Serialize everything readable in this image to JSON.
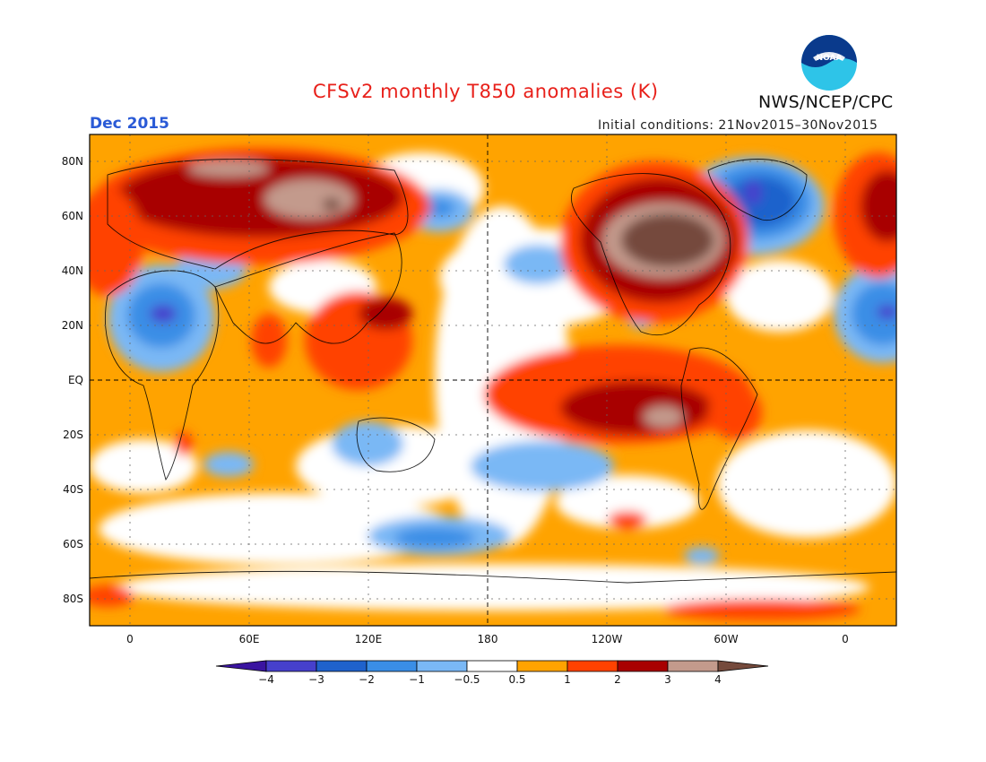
{
  "header": {
    "title": "CFSv2 monthly T850 anomalies (K)",
    "org": "NWS/NCEP/CPC",
    "logo_text": "NOAA",
    "month": "Dec 2015",
    "initial_conditions": "Initial conditions: 21Nov2015–30Nov2015"
  },
  "axes": {
    "lat_labels": [
      "80N",
      "60N",
      "40N",
      "20N",
      "EQ",
      "20S",
      "40S",
      "60S",
      "80S"
    ],
    "lon_labels": [
      "0",
      "60E",
      "120E",
      "180",
      "120W",
      "60W",
      "0"
    ]
  },
  "colorbar": {
    "labels": [
      "−4",
      "−3",
      "−2",
      "−1",
      "−0.5",
      "0.5",
      "1",
      "2",
      "3",
      "4"
    ],
    "colors": [
      "#3a14a0",
      "#4640cc",
      "#1f62cc",
      "#3a8ee6",
      "#7ab8f5",
      "#ffffff",
      "#ffa300",
      "#ff4200",
      "#a80000",
      "#c39a8c",
      "#754a3c"
    ]
  }
}
